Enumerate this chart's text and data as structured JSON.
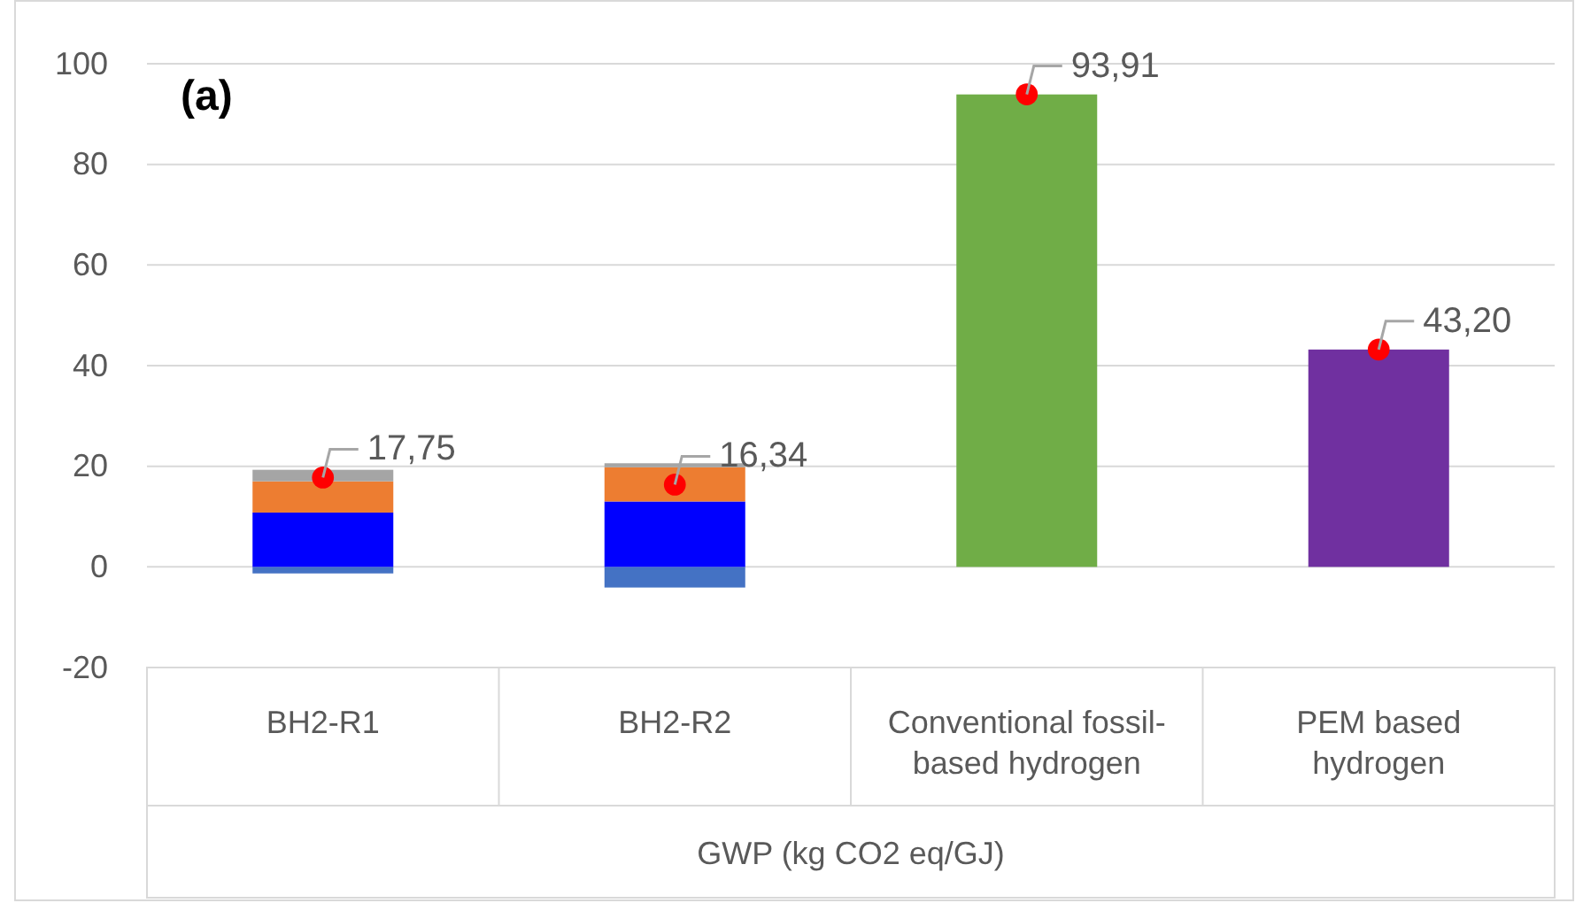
{
  "chart_data": {
    "type": "bar",
    "stacked": true,
    "categories": [
      "BH2-R1",
      "BH2-R2",
      "Conventional fossil-based hydrogen",
      "PEM based hydrogen"
    ],
    "series": [
      {
        "color": "#4472c4",
        "values": [
          -1.3,
          -4.1,
          null,
          null
        ]
      },
      {
        "color": "#0000ff",
        "values": [
          10.8,
          13.0,
          null,
          null
        ]
      },
      {
        "color": "#ed7d31",
        "values": [
          6.2,
          6.8,
          null,
          null
        ]
      },
      {
        "color": "#a5a5a5",
        "values": [
          2.3,
          0.8,
          null,
          null
        ]
      },
      {
        "colors": [
          null,
          null,
          "#70ad47",
          "#7030a0"
        ],
        "values": [
          null,
          null,
          93.9,
          43.2
        ]
      },
      {
        "type": "scatter",
        "color": "#ff0000",
        "x": [
          "BH2-R1",
          "BH2-R2",
          "Conventional fossil-based hydrogen",
          "PEM based hydrogen"
        ],
        "values": [
          17.75,
          16.34,
          93.91,
          43.2
        ],
        "value_labels": [
          "17,75",
          "16,34",
          "93,91",
          "43,20"
        ]
      }
    ],
    "xlabel": "GWP (kg CO2 eq/GJ)",
    "ylim": [
      -20,
      100
    ],
    "yticks": [
      -20,
      0,
      20,
      40,
      60,
      80,
      100
    ],
    "grid": "y",
    "marker": "circle",
    "annotations": [
      "(a)"
    ]
  }
}
